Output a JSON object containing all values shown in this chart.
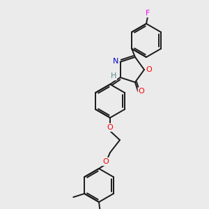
{
  "bg_color": "#ebebeb",
  "bond_color": "#1a1a1a",
  "atom_colors": {
    "F": "#ee00ee",
    "O": "#ff0000",
    "N": "#0000cc",
    "H": "#5a8a8a",
    "C": "#1a1a1a"
  },
  "figsize": [
    3.0,
    3.0
  ],
  "dpi": 100,
  "lw": 1.4
}
